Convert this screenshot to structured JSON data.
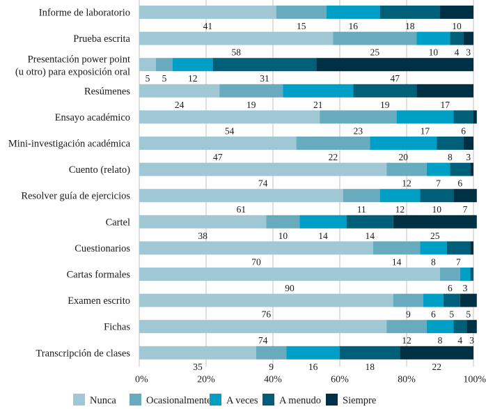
{
  "chart_data": {
    "type": "bar",
    "orientation": "horizontal",
    "stacked": "percent",
    "title": "",
    "xlabel": "",
    "ylabel": "",
    "xlim": [
      0,
      100
    ],
    "grid": true,
    "legend_position": "bottom",
    "x_ticks": [
      "0%",
      "20%",
      "40%",
      "60%",
      "80%",
      "100%"
    ],
    "categories": [
      "Informe de laboratorio",
      "Prueba escrita",
      "Presentación power point\n(u otro) para exposición oral",
      "Resúmenes",
      "Ensayo académico",
      "Mini-investigación académica",
      "Cuento (relato)",
      "Resolver guía de ejercicios",
      "Cartel",
      "Cuestionarios",
      "Cartas formales",
      "Examen escrito",
      "Fichas",
      "Transcripción de clases"
    ],
    "series": [
      {
        "name": "Nunca",
        "color": "#9fc7d4",
        "values": [
          41,
          58,
          5,
          24,
          54,
          47,
          74,
          61,
          38,
          70,
          90,
          76,
          74,
          35
        ],
        "labels": [
          "41",
          "58",
          "5",
          "24",
          "54",
          "47",
          "74",
          "61",
          "38",
          "70",
          "90",
          "76",
          "74",
          "35"
        ]
      },
      {
        "name": "Ocasionalmente",
        "color": "#68abbf",
        "values": [
          15,
          25,
          5,
          19,
          23,
          22,
          12,
          11,
          10,
          14,
          6,
          9,
          12,
          9
        ],
        "labels": [
          "15",
          "25",
          "5",
          "19",
          "23",
          "22",
          "12",
          "11",
          "10",
          "14",
          "6",
          "9",
          "12",
          "9"
        ]
      },
      {
        "name": "A veces",
        "color": "#00a0c6",
        "values": [
          16,
          10,
          12,
          21,
          17,
          20,
          7,
          12,
          14,
          8,
          3,
          6,
          8,
          16
        ],
        "labels": [
          "16",
          "10",
          "12",
          "21",
          "17",
          "20",
          "7",
          "12",
          "14",
          "8",
          "3",
          "6",
          "8",
          "16"
        ]
      },
      {
        "name": "A menudo",
        "color": "#005f78",
        "values": [
          18,
          4,
          31,
          19,
          6,
          8,
          6,
          10,
          14,
          7,
          1,
          5,
          4,
          18
        ],
        "labels": [
          "18",
          "4",
          "31",
          "19",
          "6",
          "8",
          "6",
          "10",
          "14",
          "7",
          "",
          "5",
          "4",
          "18"
        ]
      },
      {
        "name": "Siempre",
        "color": "#003043",
        "values": [
          10,
          3,
          47,
          17,
          1,
          3,
          1,
          7,
          25,
          1,
          0,
          5,
          3,
          22
        ],
        "labels": [
          "10",
          "3",
          "47",
          "17",
          "",
          "3",
          "",
          "7",
          "25",
          "",
          "",
          "5",
          "3",
          "22"
        ]
      }
    ]
  }
}
